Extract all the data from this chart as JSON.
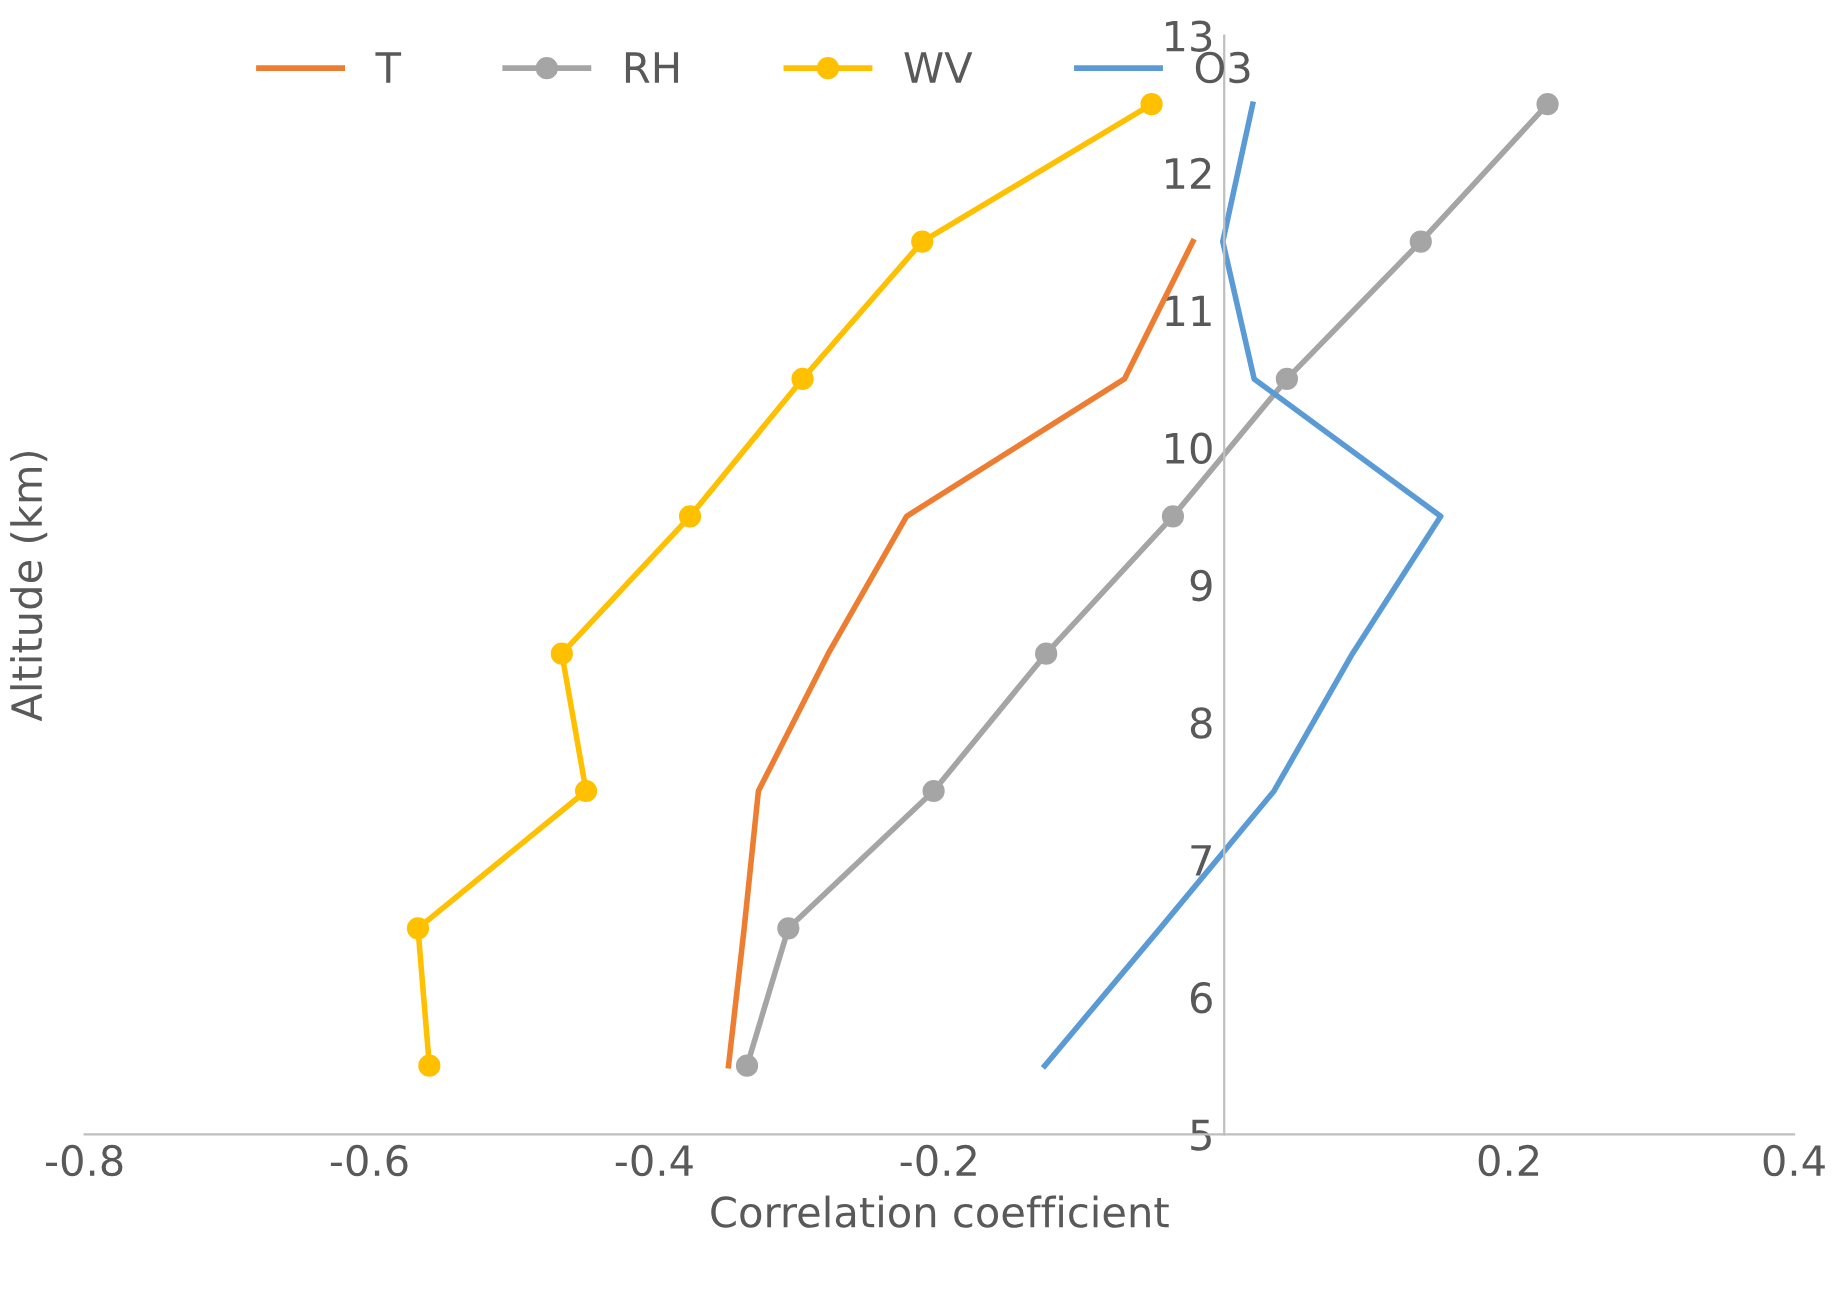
{
  "chart_data": {
    "type": "line",
    "xlabel": "Correlation coefficient",
    "ylabel": "Altitude (km)",
    "xlim": [
      -0.8,
      0.4
    ],
    "xticks": [
      -0.8,
      -0.6,
      -0.4,
      -0.2,
      {
        "value": 0,
        "label": null
      },
      0.2,
      0.4
    ],
    "ylim": [
      5,
      13
    ],
    "yticks": [
      5,
      6,
      7,
      8,
      9,
      10,
      11,
      12,
      13
    ],
    "grid": false,
    "legend": "top left",
    "series": [
      {
        "name": "T",
        "color": "#ed7d31",
        "marker": "none",
        "x": [
          -0.348,
          -0.337,
          -0.327,
          -0.278,
          -0.223,
          -0.07,
          -0.022
        ],
        "values": [
          5.5,
          6.5,
          7.5,
          8.5,
          9.5,
          10.5,
          11.5
        ]
      },
      {
        "name": "RH",
        "color": "#a5a5a5",
        "marker": "circle",
        "x": [
          -0.335,
          -0.306,
          -0.204,
          -0.125,
          -0.036,
          0.044,
          0.138,
          0.227
        ],
        "values": [
          5.5,
          6.5,
          7.5,
          8.5,
          9.5,
          10.5,
          11.5,
          12.5
        ]
      },
      {
        "name": "WV",
        "color": "#ffc000",
        "marker": "circle",
        "x": [
          -0.558,
          -0.566,
          -0.448,
          -0.465,
          -0.375,
          -0.296,
          -0.212,
          -0.051
        ],
        "values": [
          5.5,
          6.5,
          7.5,
          8.5,
          9.5,
          10.5,
          11.5,
          12.5
        ]
      },
      {
        "name": "O3",
        "color": "#5b9bd5",
        "marker": "none",
        "x": [
          -0.126,
          -0.045,
          0.035,
          0.09,
          0.152,
          0.021,
          -0.001,
          0.02
        ],
        "values": [
          5.5,
          6.5,
          7.5,
          8.5,
          9.5,
          10.5,
          11.5,
          12.5
        ]
      }
    ]
  }
}
